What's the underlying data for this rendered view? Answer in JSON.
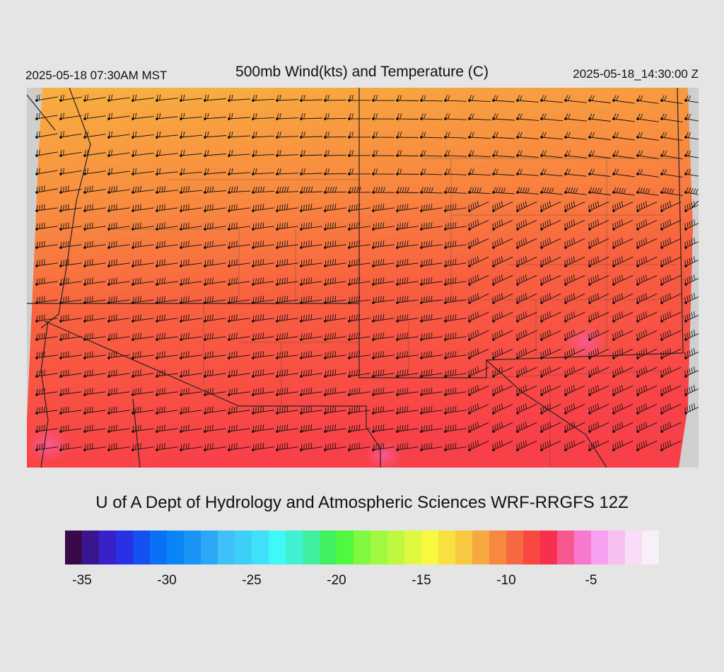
{
  "header": {
    "local_time": "2025-05-18 07:30AM MST",
    "title": "500mb Wind(kts) and Temperature (C)",
    "utc_time": "2025-05-18_14:30:00 Z"
  },
  "credit": "U of A Dept of Hydrology and Atmospheric Sciences WRF-RRGFS 12Z",
  "colorbar": {
    "colors": [
      "#3a0a48",
      "#3a1590",
      "#3a20c8",
      "#2a30e6",
      "#1550f0",
      "#0a70f5",
      "#0a85f5",
      "#1a95f5",
      "#2aa8f5",
      "#40c0f8",
      "#3cd0f8",
      "#40e0f8",
      "#40f8f8",
      "#40f0d0",
      "#40f0a0",
      "#40f060",
      "#50f840",
      "#80f840",
      "#a0f840",
      "#c0f840",
      "#e0f840",
      "#f8f840",
      "#f8e040",
      "#f8c840",
      "#f8a840",
      "#f88840",
      "#f86840",
      "#f84840",
      "#f83050",
      "#f85890",
      "#f878d0",
      "#f8a0f0",
      "#f8c0f0",
      "#f8dcf8",
      "#f8f0f8"
    ],
    "tick_labels": [
      "-35",
      "-30",
      "-25",
      "-20",
      "-15",
      "-10",
      "-5"
    ],
    "tick_values": [
      -35,
      -30,
      -25,
      -20,
      -15,
      -10,
      -5
    ],
    "min": -36,
    "max": -1
  },
  "map": {
    "legend": "Temperature (C)",
    "wind_units": "kts"
  }
}
